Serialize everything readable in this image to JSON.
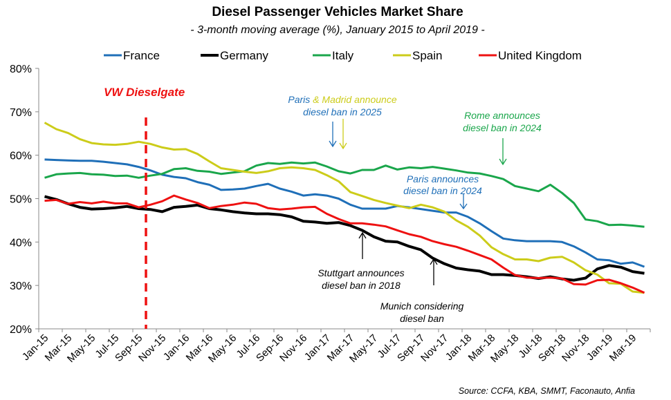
{
  "chart_data": {
    "type": "line",
    "title": "Diesel Passenger Vehicles Market Share",
    "subtitle": "- 3-month moving average (%), January 2015 to April 2019 -",
    "xlabel": "",
    "ylabel": "",
    "ylim": [
      20,
      80
    ],
    "yticks": [
      "20%",
      "30%",
      "40%",
      "50%",
      "60%",
      "70%",
      "80%"
    ],
    "grid": false,
    "legend_position": "top",
    "xtick_labels": [
      "Jan-15",
      "Mar-15",
      "May-15",
      "Jul-15",
      "Sep-15",
      "Nov-15",
      "Jan-16",
      "Mar-16",
      "May-16",
      "Jul-16",
      "Sep-16",
      "Nov-16",
      "Jan-17",
      "Mar-17",
      "May-17",
      "Jul-17",
      "Sep-17",
      "Nov-17",
      "Jan-18",
      "Mar-18",
      "May-18",
      "Jul-18",
      "Sep-18",
      "Nov-18",
      "Jan-19",
      "Mar-19"
    ],
    "x_range": [
      "Jan-15",
      "Apr-19"
    ],
    "series": [
      {
        "name": "France",
        "color": "#1f6fb8",
        "values": [
          59.0,
          58.9,
          58.8,
          58.7,
          58.7,
          58.5,
          58.2,
          57.9,
          57.3,
          56.5,
          55.5,
          55.0,
          54.7,
          53.8,
          53.2,
          52.0,
          52.1,
          52.3,
          52.9,
          53.4,
          52.3,
          51.6,
          50.7,
          51.0,
          50.7,
          50.0,
          48.6,
          47.7,
          47.7,
          47.7,
          48.3,
          48.0,
          47.6,
          47.2,
          46.8,
          46.8,
          45.8,
          44.3,
          42.5,
          40.8,
          40.4,
          40.2,
          40.2,
          40.2,
          40.0,
          39.0,
          37.6,
          36.0,
          35.8,
          35.0,
          35.3,
          34.3
        ]
      },
      {
        "name": "Germany",
        "color": "#000000",
        "values": [
          50.5,
          49.8,
          48.8,
          48.0,
          47.6,
          47.7,
          47.9,
          48.2,
          47.7,
          47.5,
          47.0,
          48.0,
          48.2,
          48.5,
          47.7,
          47.4,
          47.0,
          46.7,
          46.5,
          46.5,
          46.3,
          45.8,
          44.8,
          44.6,
          44.3,
          44.5,
          43.8,
          42.7,
          41.2,
          40.2,
          40.0,
          39.0,
          38.2,
          36.3,
          35.0,
          34.0,
          33.6,
          33.3,
          32.5,
          32.5,
          32.3,
          32.0,
          31.6,
          32.0,
          31.5,
          31.2,
          31.7,
          33.8,
          34.6,
          34.2,
          33.2,
          32.8
        ]
      },
      {
        "name": "Italy",
        "color": "#1aa64b",
        "values": [
          54.8,
          55.6,
          55.8,
          55.9,
          55.6,
          55.5,
          55.2,
          55.3,
          54.8,
          55.3,
          55.7,
          56.8,
          57.0,
          56.4,
          56.2,
          55.7,
          56.0,
          56.3,
          57.6,
          58.2,
          58.0,
          58.3,
          58.1,
          58.3,
          57.4,
          56.3,
          55.8,
          56.6,
          56.6,
          57.6,
          56.7,
          57.2,
          57.0,
          57.3,
          56.9,
          56.5,
          56.0,
          55.8,
          55.2,
          54.5,
          52.9,
          52.3,
          51.7,
          53.2,
          51.3,
          49.0,
          45.2,
          44.8,
          43.9,
          44.0,
          43.8,
          43.5
        ]
      },
      {
        "name": "Spain",
        "color": "#cccc1a",
        "values": [
          67.5,
          66.0,
          65.1,
          63.7,
          62.8,
          62.5,
          62.4,
          62.6,
          63.1,
          62.6,
          61.8,
          61.3,
          61.4,
          60.3,
          58.6,
          57.0,
          56.6,
          56.2,
          55.9,
          56.3,
          57.0,
          57.2,
          57.0,
          56.6,
          55.4,
          54.0,
          51.5,
          50.6,
          49.7,
          49.0,
          48.4,
          47.8,
          48.6,
          48.0,
          47.0,
          45.0,
          43.5,
          41.5,
          38.8,
          37.2,
          36.0,
          36.0,
          35.6,
          36.4,
          36.6,
          35.3,
          33.5,
          32.5,
          30.5,
          30.4,
          28.6,
          28.3
        ]
      },
      {
        "name": "United Kingdom",
        "color": "#ee1111",
        "values": [
          49.5,
          49.7,
          48.8,
          49.2,
          48.9,
          49.3,
          48.9,
          48.9,
          48.0,
          48.6,
          49.4,
          50.7,
          49.8,
          49.0,
          47.8,
          48.3,
          48.6,
          49.1,
          48.8,
          47.8,
          47.5,
          47.7,
          48.0,
          48.1,
          46.5,
          45.3,
          44.3,
          44.3,
          44.0,
          43.6,
          42.7,
          41.8,
          41.2,
          40.2,
          39.5,
          38.9,
          38.0,
          37.0,
          36.0,
          34.1,
          32.4,
          31.8,
          31.7,
          31.8,
          31.6,
          30.3,
          30.2,
          31.2,
          31.3,
          30.5,
          29.5,
          28.3
        ]
      }
    ],
    "annotations": {
      "dieselgate": {
        "text": "VW Dieselgate",
        "color": "#ee1111"
      },
      "paris_madrid": {
        "part1": "Paris",
        "part2": "& Madrid announce",
        "line2": "diesel ban in 2025",
        "color1": "#1f6fb8",
        "color2": "#cccc1a"
      },
      "rome": {
        "line1": "Rome announces",
        "line2": "diesel ban in 2024",
        "color": "#1aa64b"
      },
      "paris": {
        "line1": "Paris  announces",
        "line2": "diesel ban in 2024",
        "color": "#1f6fb8"
      },
      "stuttgart": {
        "line1": "Stuttgart announces",
        "line2": "diesel ban in 2018",
        "color": "#000000"
      },
      "munich": {
        "line1": "Munich considering",
        "line2": "diesel ban",
        "color": "#000000"
      }
    },
    "source": "Source: CCFA, KBA, SMMT, Faconauto, Anfia"
  }
}
